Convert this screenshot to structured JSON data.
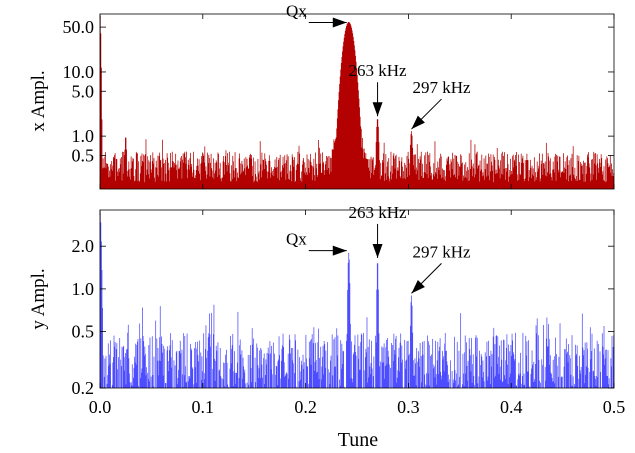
{
  "chart_data": [
    {
      "type": "bar",
      "id": "x",
      "ylabel": "x Ampl.",
      "xlabel": "",
      "y_scale": "log",
      "xlim": [
        0,
        0.5
      ],
      "ylim": [
        0.15,
        80
      ],
      "color": "#b30000",
      "x_ticks": [
        0.0,
        0.1,
        0.2,
        0.3,
        0.4,
        0.5
      ],
      "y_ticks": [
        {
          "value": 0.5,
          "label": "0.5"
        },
        {
          "value": 1.0,
          "label": "1.0"
        },
        {
          "value": 5.0,
          "label": "5.0"
        },
        {
          "value": 10.0,
          "label": "10.0"
        },
        {
          "value": 50.0,
          "label": "50.0"
        }
      ],
      "baseline_level": 0.35,
      "peaks": [
        {
          "x": 0.0,
          "value": 80,
          "width": 0.001
        },
        {
          "x": 0.242,
          "value": 60,
          "width": 0.006
        },
        {
          "x": 0.27,
          "value": 1.9,
          "width": 0.0015
        },
        {
          "x": 0.303,
          "value": 1.2,
          "width": 0.0015
        },
        {
          "x": 0.025,
          "value": 1.0,
          "width": 0.0012
        }
      ],
      "annotations": [
        {
          "text": "Qx",
          "x": 0.242,
          "y": 55
        },
        {
          "text": "263 kHz",
          "x": 0.27,
          "y": 1.9
        },
        {
          "text": "297 kHz",
          "x": 0.303,
          "y": 1.2
        }
      ]
    },
    {
      "type": "bar",
      "id": "y",
      "ylabel": "y Ampl.",
      "xlabel": "Tune",
      "y_scale": "log",
      "xlim": [
        0,
        0.5
      ],
      "ylim": [
        0.2,
        3.6
      ],
      "color": "#4d4dff",
      "x_ticks": [
        {
          "value": 0.0,
          "label": "0.0"
        },
        {
          "value": 0.1,
          "label": "0.1"
        },
        {
          "value": 0.2,
          "label": "0.2"
        },
        {
          "value": 0.3,
          "label": "0.3"
        },
        {
          "value": 0.4,
          "label": "0.4"
        },
        {
          "value": 0.5,
          "label": "0.5"
        }
      ],
      "y_ticks": [
        {
          "value": 0.2,
          "label": "0.2"
        },
        {
          "value": 0.5,
          "label": "0.5"
        },
        {
          "value": 1.0,
          "label": "1.0"
        },
        {
          "value": 2.0,
          "label": "2.0"
        }
      ],
      "baseline_level": 0.3,
      "peaks": [
        {
          "x": 0.0,
          "value": 3.5,
          "width": 0.002
        },
        {
          "x": 0.242,
          "value": 1.8,
          "width": 0.0015
        },
        {
          "x": 0.27,
          "value": 1.6,
          "width": 0.0012
        },
        {
          "x": 0.303,
          "value": 0.9,
          "width": 0.0015
        }
      ],
      "annotations": [
        {
          "text": "Qx",
          "x": 0.242,
          "y": 1.8
        },
        {
          "text": "263 kHz",
          "x": 0.27,
          "y": 1.6
        },
        {
          "text": "297 kHz",
          "x": 0.303,
          "y": 0.9
        }
      ]
    }
  ]
}
